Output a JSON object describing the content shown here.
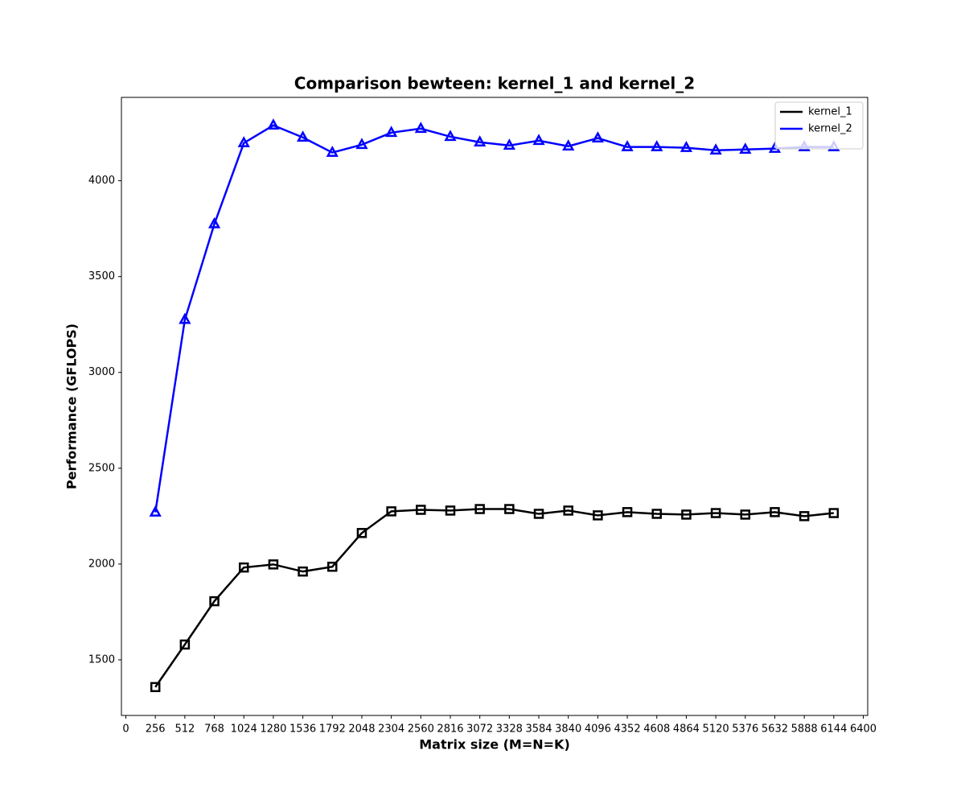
{
  "chart_data": {
    "type": "line",
    "title": "Comparison bewteen: kernel_1 and kernel_2",
    "x_label": "Matrix size (M=N=K)",
    "y_label": "Performance (GFLOPS)",
    "x": [
      256,
      512,
      768,
      1024,
      1280,
      1536,
      1792,
      2048,
      2304,
      2560,
      2816,
      3072,
      3328,
      3584,
      3840,
      4096,
      4352,
      4608,
      4864,
      5120,
      5376,
      5632,
      5888,
      6144
    ],
    "series": [
      {
        "name": "kernel_1",
        "color": "#000000",
        "marker": "square",
        "values": [
          1358,
          1580,
          1806,
          1982,
          1998,
          1961,
          1986,
          2162,
          2275,
          2283,
          2279,
          2287,
          2287,
          2262,
          2279,
          2254,
          2271,
          2262,
          2258,
          2266,
          2258,
          2271,
          2250,
          2266
        ]
      },
      {
        "name": "kernel_2",
        "color": "#0000ff",
        "marker": "triangle",
        "values": [
          2270,
          3275,
          3774,
          4197,
          4289,
          4226,
          4147,
          4188,
          4251,
          4272,
          4230,
          4201,
          4184,
          4209,
          4180,
          4222,
          4176,
          4176,
          4172,
          4159,
          4163,
          4168,
          4176,
          4176
        ]
      }
    ],
    "xlim": [
      -38.4,
      6438.4
    ],
    "xticks": [
      0,
      256,
      512,
      768,
      1024,
      1280,
      1536,
      1792,
      2048,
      2304,
      2560,
      2816,
      3072,
      3328,
      3584,
      3840,
      4096,
      4352,
      4608,
      4864,
      5120,
      5376,
      5632,
      5888,
      6144,
      6400
    ],
    "ylim": [
      1210,
      4435
    ],
    "yticks": [
      1500,
      2000,
      2500,
      3000,
      3500,
      4000
    ],
    "grid": false,
    "legend": "upper right"
  }
}
